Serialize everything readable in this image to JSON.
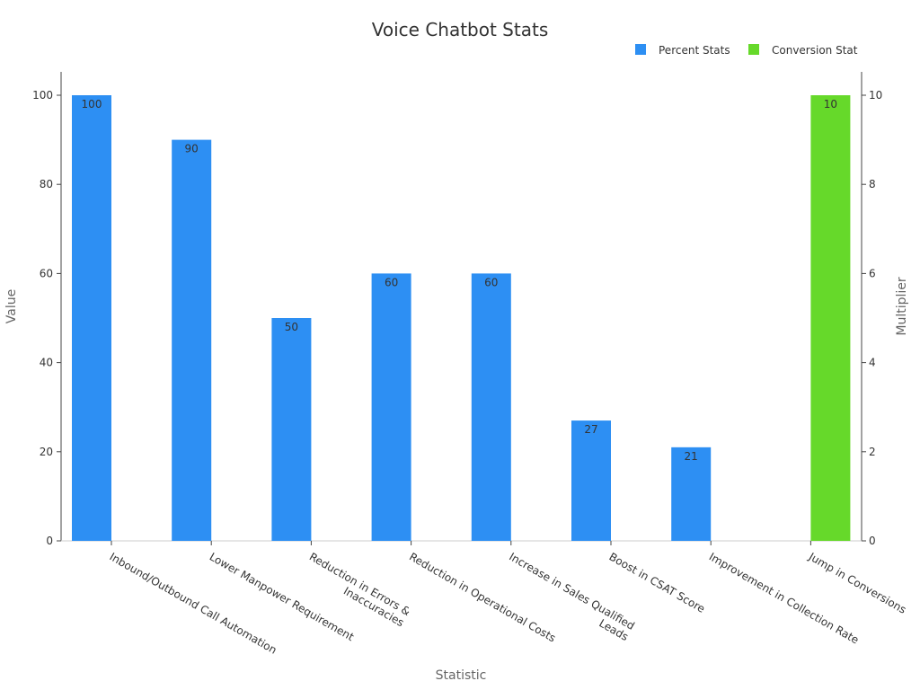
{
  "chart_data": {
    "type": "bar",
    "title": "Voice Chatbot Stats",
    "xlabel": "Statistic",
    "ylabel": "Value",
    "y2label": "Multiplier",
    "ylim": [
      0,
      105
    ],
    "y2lim": [
      0,
      10.5
    ],
    "yticks": [
      0,
      20,
      40,
      60,
      80,
      100
    ],
    "y2ticks": [
      0,
      2,
      4,
      6,
      8,
      10
    ],
    "grid": false,
    "legend_position": "top-right",
    "categories": [
      "Inbound/Outbound Call Automation",
      "Lower Manpower Requirement",
      "Reduction in Errors & Inaccuracies",
      "Reduction in Operational Costs",
      "Increase in Sales Qualified Leads",
      "Boost in CSAT Score",
      "Improvement in Collection Rate",
      "Jump in Conversions"
    ],
    "category_lines": [
      [
        "Inbound/Outbound Call Automation"
      ],
      [
        "Lower Manpower Requirement"
      ],
      [
        "Reduction in Errors &",
        "Inaccuracies"
      ],
      [
        "Reduction in Operational Costs"
      ],
      [
        "Increase in Sales Qualified",
        "Leads"
      ],
      [
        "Boost in CSAT Score"
      ],
      [
        "Improvement in Collection Rate"
      ],
      [
        "Jump in Conversions"
      ]
    ],
    "series": [
      {
        "name": "Percent Stats",
        "axis": "left",
        "color": "#2d8ff3",
        "values": [
          100,
          90,
          50,
          60,
          60,
          27,
          21,
          null
        ]
      },
      {
        "name": "Conversion Stat",
        "axis": "right",
        "color": "#66d92a",
        "values": [
          null,
          null,
          null,
          null,
          null,
          null,
          null,
          10
        ]
      }
    ]
  }
}
